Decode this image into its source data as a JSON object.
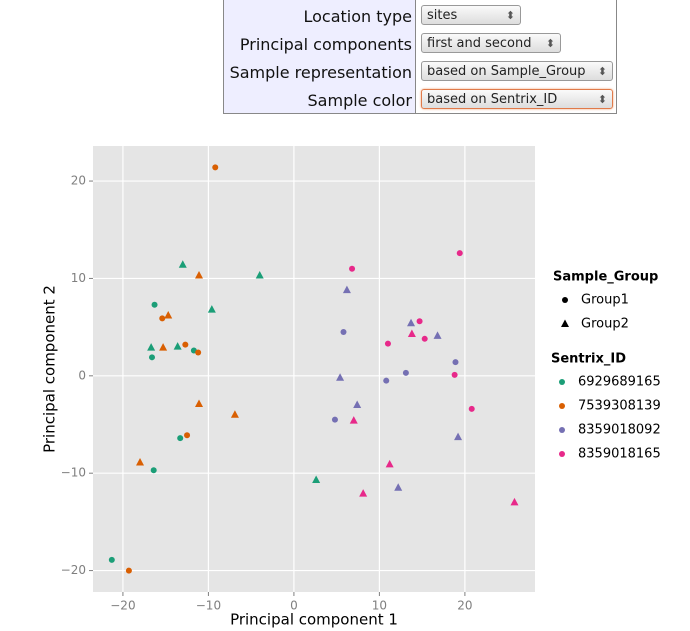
{
  "form": {
    "rows": [
      {
        "label": "Location type",
        "value": "sites",
        "width": 100
      },
      {
        "label": "Principal components",
        "value": "first and second",
        "width": 140
      },
      {
        "label": "Sample representation",
        "value": "based on Sample_Group",
        "width": 192
      },
      {
        "label": "Sample color",
        "value": "based on Sentrix_ID",
        "width": 192,
        "focused": true
      }
    ]
  },
  "chart_data": {
    "type": "scatter",
    "xlabel": "Principal component 1",
    "ylabel": "Principal component 2",
    "xlim": [
      -23.5,
      28.2
    ],
    "ylim": [
      -22.2,
      23.6
    ],
    "xticks": [
      {
        "value": -20,
        "label": "−20"
      },
      {
        "value": -10,
        "label": "−10"
      },
      0,
      10,
      20
    ],
    "yticks": [
      {
        "value": -20,
        "label": "−20"
      },
      {
        "value": -10,
        "label": "−10"
      },
      0,
      10,
      20
    ],
    "grid": true,
    "shape_legend": {
      "title": "Sample_Group",
      "items": [
        {
          "label": "Group1",
          "shape": "circle"
        },
        {
          "label": "Group2",
          "shape": "triangle"
        }
      ]
    },
    "color_legend": {
      "title": "Sentrix_ID",
      "items": [
        {
          "label": "6929689165",
          "color": "#1b9e77"
        },
        {
          "label": "7539308139",
          "color": "#d95f02"
        },
        {
          "label": "8359018092",
          "color": "#7570b3"
        },
        {
          "label": "8359018165",
          "color": "#e7298a"
        }
      ]
    },
    "series": [
      {
        "color": "#1b9e77",
        "shape": "circle",
        "x": [
          -16.3,
          -16.6,
          -11.7,
          -13.3,
          -16.4,
          -21.3
        ],
        "y": [
          7.3,
          1.9,
          2.6,
          -6.4,
          -9.7,
          -18.9
        ]
      },
      {
        "color": "#1b9e77",
        "shape": "triangle",
        "x": [
          -13.0,
          -4.0,
          -9.6,
          -16.7,
          -13.6,
          2.6
        ],
        "y": [
          11.4,
          10.3,
          6.8,
          2.9,
          3.0,
          -10.7
        ]
      },
      {
        "color": "#d95f02",
        "shape": "circle",
        "x": [
          -9.2,
          -15.4,
          -12.7,
          -11.2,
          -12.5,
          -19.3
        ],
        "y": [
          21.4,
          5.9,
          3.2,
          2.4,
          -6.1,
          -20.0
        ]
      },
      {
        "color": "#d95f02",
        "shape": "triangle",
        "x": [
          -11.1,
          -14.7,
          -15.3,
          -11.1,
          -6.9,
          -18.0
        ],
        "y": [
          10.3,
          6.2,
          2.9,
          -2.9,
          -4.0,
          -8.9
        ]
      },
      {
        "color": "#7570b3",
        "shape": "circle",
        "x": [
          5.8,
          13.1,
          10.8,
          4.8,
          18.9
        ],
        "y": [
          4.5,
          0.3,
          -0.5,
          -4.5,
          1.4
        ]
      },
      {
        "color": "#7570b3",
        "shape": "triangle",
        "x": [
          6.2,
          13.7,
          16.8,
          5.4,
          7.4,
          12.2,
          19.2
        ],
        "y": [
          8.8,
          5.4,
          4.1,
          -0.2,
          -3.0,
          -11.5,
          -6.3
        ]
      },
      {
        "color": "#e7298a",
        "shape": "circle",
        "x": [
          6.8,
          19.4,
          14.7,
          15.3,
          11.0,
          18.8,
          20.8
        ],
        "y": [
          11.0,
          12.6,
          5.6,
          3.8,
          3.3,
          0.1,
          -3.4
        ]
      },
      {
        "color": "#e7298a",
        "shape": "triangle",
        "x": [
          13.8,
          7.0,
          11.2,
          8.1,
          25.8
        ],
        "y": [
          4.3,
          -4.6,
          -9.1,
          -12.1,
          -13.0
        ]
      }
    ]
  }
}
